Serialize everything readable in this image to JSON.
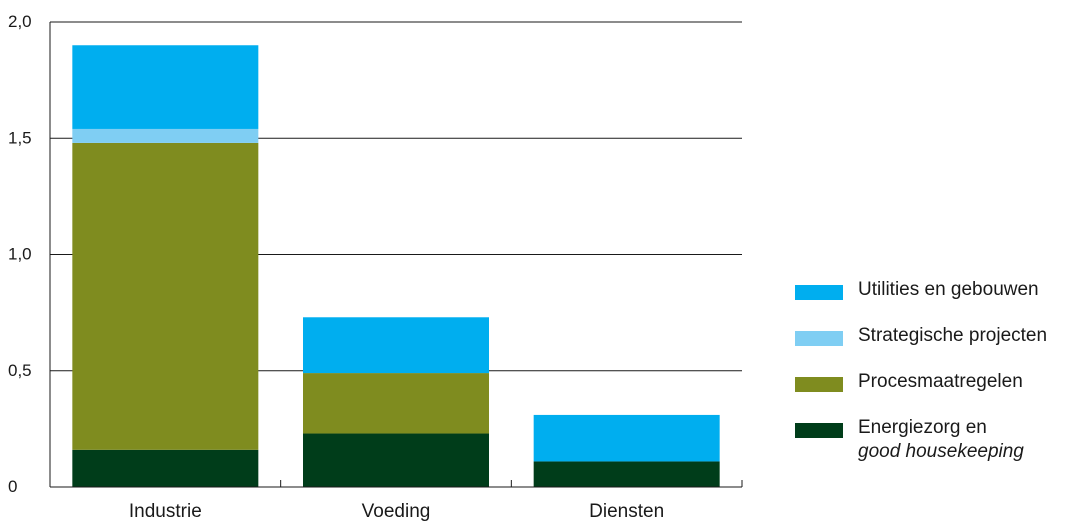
{
  "chart_data": {
    "type": "bar",
    "stacked": true,
    "categories": [
      "Industrie",
      "Voeding",
      "Diensten"
    ],
    "series": [
      {
        "name": "Energiezorg en good housekeeping",
        "color": "#003d1a",
        "values": [
          0.16,
          0.23,
          0.11
        ]
      },
      {
        "name": "Procesmaatregelen",
        "color": "#7f8c1f",
        "values": [
          1.32,
          0.26,
          0.0
        ]
      },
      {
        "name": "Strategische projecten",
        "color": "#7fcef3",
        "values": [
          0.06,
          0.0,
          0.0
        ]
      },
      {
        "name": "Utilities en gebouwen",
        "color": "#00aeef",
        "values": [
          0.36,
          0.24,
          0.2
        ]
      }
    ],
    "ylim": [
      0,
      2.0
    ],
    "yticks": [
      0,
      0.5,
      1.0,
      1.5,
      2.0
    ],
    "ytick_labels": [
      "0",
      "0,5",
      "1,0",
      "1,5",
      "2,0"
    ],
    "grid": true,
    "legend_position": "right"
  },
  "legend": {
    "items": [
      {
        "label": "Utilities en gebouwen",
        "color": "#00aeef"
      },
      {
        "label": "Strategische projecten",
        "color": "#7fcef3"
      },
      {
        "label": "Procesmaatregelen",
        "color": "#7f8c1f"
      },
      {
        "label": "Energiezorg en",
        "label_italic": "good housekeeping",
        "color": "#003d1a"
      }
    ]
  }
}
